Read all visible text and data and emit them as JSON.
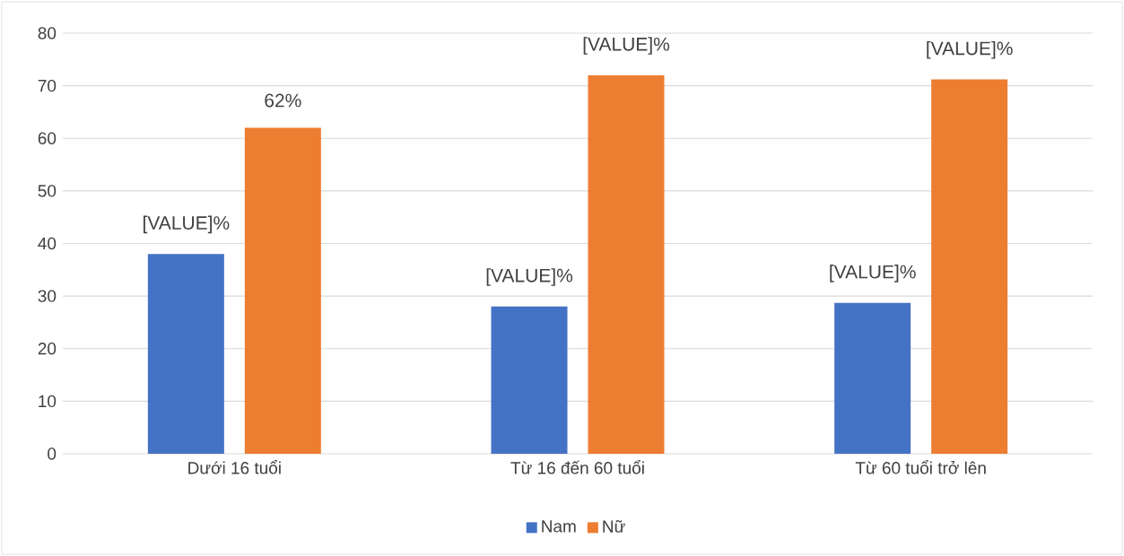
{
  "chart_data": {
    "type": "bar",
    "categories": [
      "Dưới 16 tuổi",
      "Từ 16 đến 60 tuổi",
      "Từ 60 tuổi trở lên"
    ],
    "series": [
      {
        "name": "Nam",
        "color": "#4472c4",
        "values": [
          38,
          28,
          28.7
        ],
        "value_labels": [
          "[VALUE]%",
          "[VALUE]%",
          "[VALUE]%"
        ]
      },
      {
        "name": "Nữ",
        "color": "#ed7d31",
        "values": [
          62,
          72,
          71.2
        ],
        "value_labels": [
          "62%",
          "[VALUE]%",
          "[VALUE]%"
        ]
      }
    ],
    "ylim": [
      0,
      80
    ],
    "yticks": [
      0,
      10,
      20,
      30,
      40,
      50,
      60,
      70,
      80
    ],
    "grid": "y",
    "legend": "bottom"
  }
}
